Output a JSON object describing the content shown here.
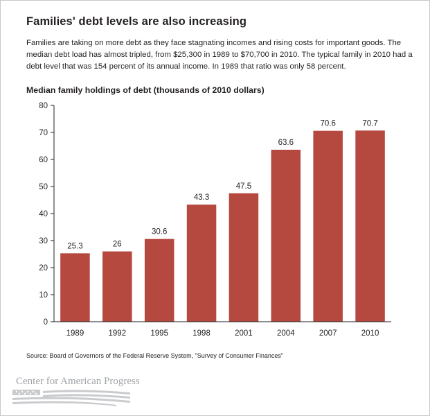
{
  "header": {
    "title": "Families' debt levels are also increasing",
    "description": "Families are taking on more debt as they face stagnating incomes and rising costs for important goods. The median debt load has almost tripled, from $25,300 in 1989 to $70,700 in 2010. The typical family in 2010 had a debt level that was 154 percent of its annual income. In 1989 that ratio was only 58 percent."
  },
  "chart_data": {
    "type": "bar",
    "title": "Median family holdings of debt (thousands of 2010 dollars)",
    "categories": [
      "1989",
      "1992",
      "1995",
      "1998",
      "2001",
      "2004",
      "2007",
      "2010"
    ],
    "values": [
      25.3,
      26,
      30.6,
      43.3,
      47.5,
      63.6,
      70.6,
      70.7
    ],
    "data_labels": [
      "25.3",
      "26",
      "30.6",
      "43.3",
      "47.5",
      "63.6",
      "70.6",
      "70.7"
    ],
    "ylim": [
      0,
      80
    ],
    "yticks": [
      0,
      10,
      20,
      30,
      40,
      50,
      60,
      70,
      80
    ],
    "grid": false,
    "bar_color": "#b5483f"
  },
  "footer": {
    "source": "Source: Board of Governors of the Federal Reserve System, \"Survey of Consumer Finances\"",
    "logo_text": "Center for American Progress"
  },
  "colors": {
    "text": "#231f20",
    "axis": "#231f20",
    "logo": "#a0a3a7"
  }
}
